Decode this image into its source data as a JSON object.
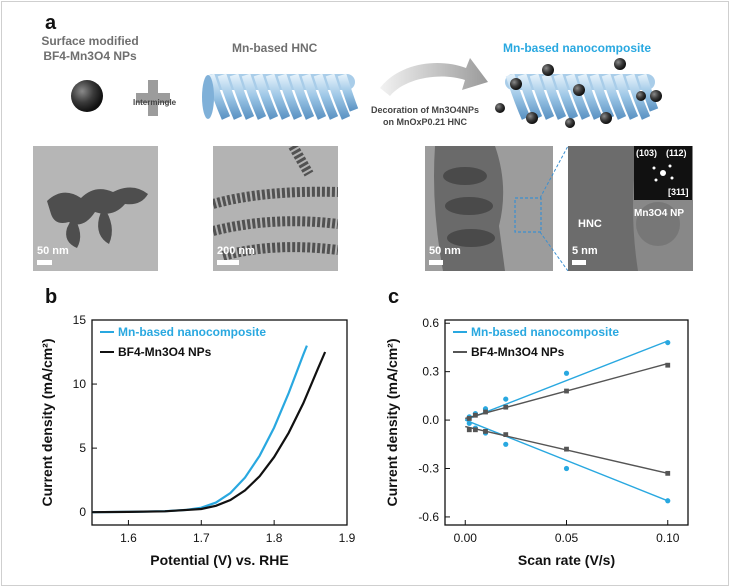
{
  "panel_labels": {
    "a": "a",
    "b": "b",
    "c": "c"
  },
  "schematic": {
    "np_label_line1": "Surface modified",
    "np_label_line2": "BF4-Mn3O4 NPs",
    "intermingle": "Intermingle",
    "hnc_label": "Mn-based HNC",
    "arrow_caption_line1": "Decoration of Mn3O4NPs",
    "arrow_caption_line2": "on MnOxP0.21 HNC",
    "composite_label": "Mn-based nanocomposite"
  },
  "micrographs": [
    {
      "scale": "50 nm"
    },
    {
      "scale": "200 nm"
    },
    {
      "scale": "50 nm"
    },
    {
      "scale": "5 nm",
      "hnc": "HNC",
      "np": "Mn3O4 NP",
      "fft_a": "(103)",
      "fft_b": "(112)",
      "fft_c": "[311]"
    }
  ],
  "colors": {
    "blue": "#29a8e0",
    "black": "#111111"
  },
  "chart_data": [
    {
      "type": "line",
      "panel": "b",
      "xlabel": "Potential (V) vs. RHE",
      "ylabel": "Current density (mA/cm²)",
      "xlim": [
        1.55,
        1.9
      ],
      "ylim": [
        -1,
        15
      ],
      "xticks": [
        "1.6",
        "1.7",
        "1.8",
        "1.9"
      ],
      "yticks": [
        "0",
        "5",
        "10",
        "15"
      ],
      "series": [
        {
          "name": "Mn-based nanocomposite",
          "color": "#29a8e0",
          "x": [
            1.55,
            1.6,
            1.65,
            1.68,
            1.7,
            1.72,
            1.74,
            1.76,
            1.78,
            1.8,
            1.82,
            1.84,
            1.845
          ],
          "y": [
            0,
            0.02,
            0.08,
            0.18,
            0.35,
            0.75,
            1.5,
            2.7,
            4.4,
            6.6,
            9.3,
            12.3,
            13.0
          ]
        },
        {
          "name": "BF4-Mn3O4 NPs",
          "color": "#111111",
          "x": [
            1.55,
            1.6,
            1.65,
            1.7,
            1.72,
            1.74,
            1.76,
            1.78,
            1.8,
            1.82,
            1.84,
            1.86,
            1.87
          ],
          "y": [
            0,
            0.02,
            0.07,
            0.25,
            0.5,
            0.95,
            1.7,
            2.8,
            4.3,
            6.2,
            8.5,
            11.2,
            12.5
          ]
        }
      ]
    },
    {
      "type": "scatter",
      "panel": "c",
      "xlabel": "Scan rate (V/s)",
      "ylabel": "Current density (mA/cm²)",
      "xlim": [
        -0.01,
        0.11
      ],
      "ylim": [
        -0.65,
        0.62
      ],
      "xticks": [
        "0.00",
        "0.05",
        "0.10"
      ],
      "yticks": [
        "-0.6",
        "-0.3",
        "0.0",
        "0.3",
        "0.6"
      ],
      "series": [
        {
          "name": "Mn-based nanocomposite",
          "color": "#29a8e0",
          "marker": "circle",
          "x": [
            0.002,
            0.005,
            0.01,
            0.02,
            0.05,
            0.1,
            0.002,
            0.005,
            0.01,
            0.02,
            0.05,
            0.1
          ],
          "y": [
            0.02,
            0.04,
            0.07,
            0.13,
            0.29,
            0.48,
            -0.02,
            -0.05,
            -0.08,
            -0.15,
            -0.3,
            -0.5
          ],
          "fits": [
            [
              0.0,
              0.0,
              0.1,
              0.49
            ],
            [
              0.0,
              0.0,
              0.1,
              -0.5
            ]
          ]
        },
        {
          "name": "BF4-Mn3O4 NPs",
          "color": "#555555",
          "marker": "square",
          "x": [
            0.002,
            0.005,
            0.01,
            0.02,
            0.05,
            0.1,
            0.002,
            0.005,
            0.01,
            0.02,
            0.05,
            0.1
          ],
          "y": [
            0.01,
            0.03,
            0.05,
            0.08,
            0.18,
            0.34,
            -0.06,
            -0.06,
            -0.07,
            -0.09,
            -0.18,
            -0.33
          ],
          "fits": [
            [
              0.0,
              0.01,
              0.1,
              0.35
            ],
            [
              0.0,
              -0.04,
              0.1,
              -0.33
            ]
          ]
        }
      ]
    }
  ]
}
